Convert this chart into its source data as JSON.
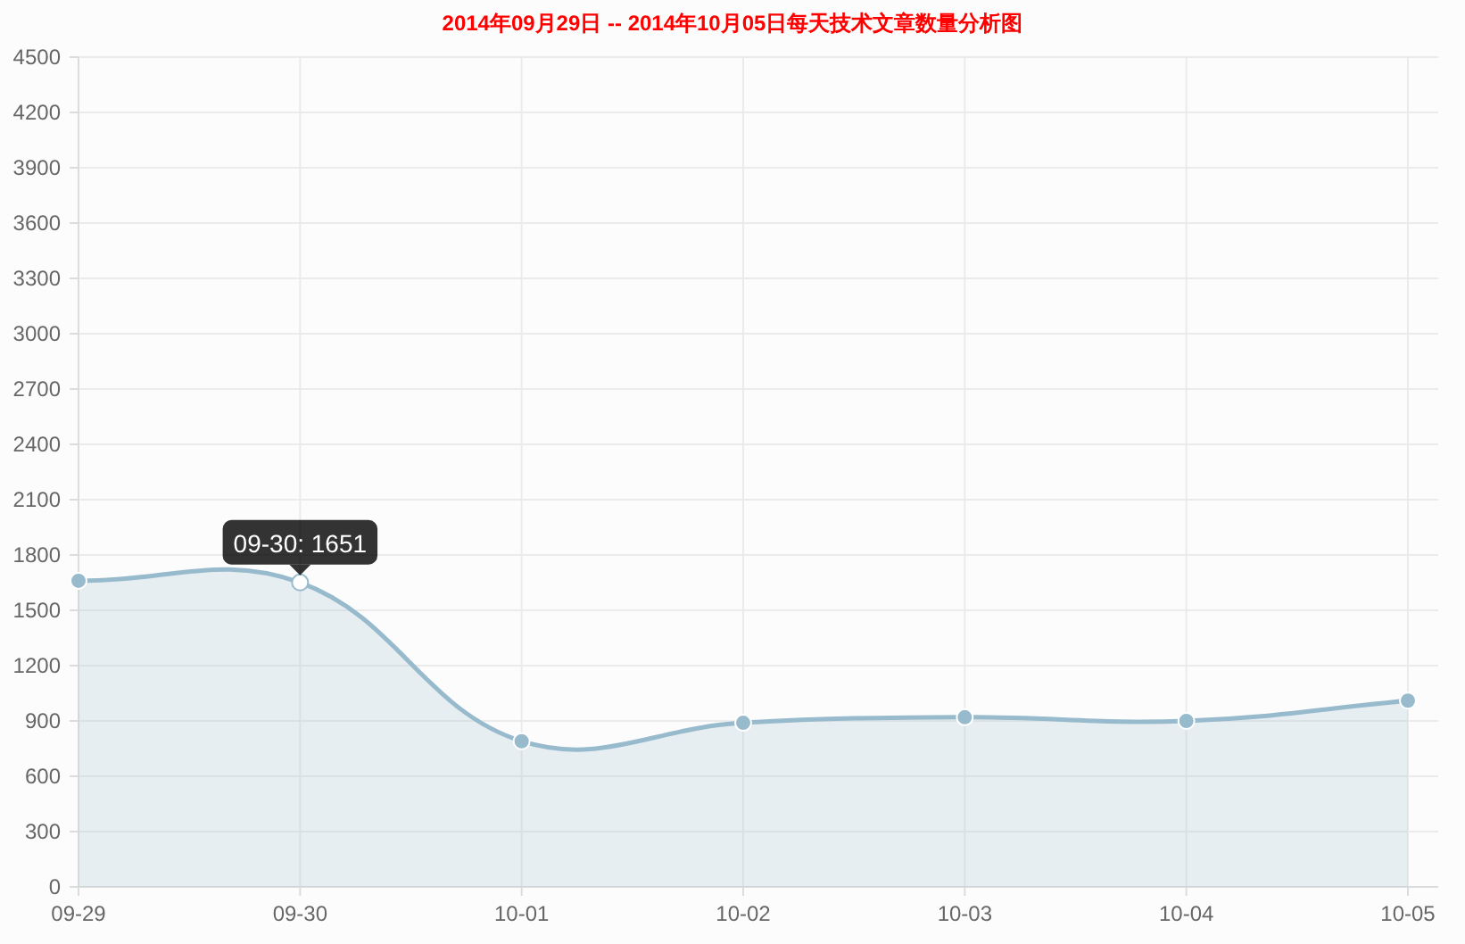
{
  "chart_data": {
    "type": "area",
    "title": "2014年09月29日 -- 2014年10月05日每天技术文章数量分析图",
    "categories": [
      "09-29",
      "09-30",
      "10-01",
      "10-02",
      "10-03",
      "10-04",
      "10-05"
    ],
    "series": [
      {
        "color": "#97bbcd",
        "colors": [
          "#97bbcd",
          "#ffffff",
          "#97bbcd",
          "#97bbcd",
          "#97bbcd",
          "#97bbcd",
          "#97bbcd"
        ],
        "values": [
          1660,
          1651,
          790,
          890,
          920,
          900,
          1010
        ]
      }
    ],
    "ylim": [
      0,
      4500
    ],
    "yticks": [
      0,
      300,
      600,
      900,
      1200,
      1500,
      1800,
      2100,
      2400,
      2700,
      3000,
      3300,
      3600,
      3900,
      4200,
      4500
    ],
    "grid": true,
    "marker": "circle",
    "annotations": [
      {
        "text": "09-30: 1651",
        "x": "09-30",
        "y": 1651
      }
    ]
  }
}
